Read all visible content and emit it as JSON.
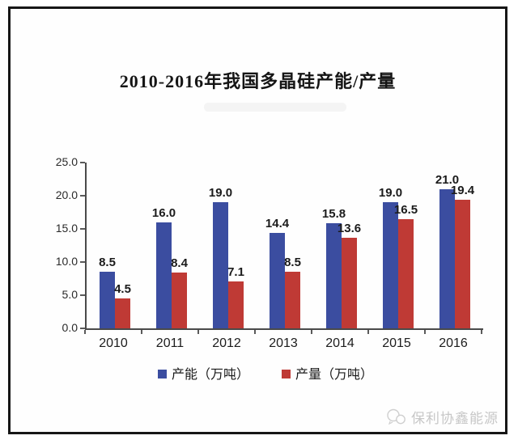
{
  "title": "2010-2016年我国多晶硅产能/产量",
  "watermark": {
    "text": "保利协鑫能源",
    "icon": "chat-bubbles-logo"
  },
  "colors": {
    "capacity_blue": "#3b4da0",
    "production_red": "#bf3a35",
    "axis_gray": "#4a4a4a",
    "frame_black": "#161616",
    "watermark_gray": "#c7c7c7"
  },
  "chart_data": {
    "type": "bar",
    "title": "2010-2016年我国多晶硅产能/产量",
    "categories": [
      "2010",
      "2011",
      "2012",
      "2013",
      "2014",
      "2015",
      "2016"
    ],
    "series": [
      {
        "name": "产能（万吨）",
        "color_key": "capacity_blue",
        "values": [
          8.5,
          16.0,
          19.0,
          14.4,
          15.8,
          19.0,
          21.0
        ]
      },
      {
        "name": "产量（万吨）",
        "color_key": "production_red",
        "values": [
          4.5,
          8.4,
          7.1,
          8.5,
          13.6,
          16.5,
          19.4
        ]
      }
    ],
    "xlabel": "",
    "ylabel": "",
    "ylim": [
      0,
      25
    ],
    "ytick_step": 5,
    "yticks": [
      "25.0",
      "20.0",
      "15.0",
      "10.0",
      "5.0",
      "0.0"
    ],
    "grid": false,
    "legend_position": "bottom",
    "value_labels": true,
    "value_label_format": "one-decimal"
  }
}
